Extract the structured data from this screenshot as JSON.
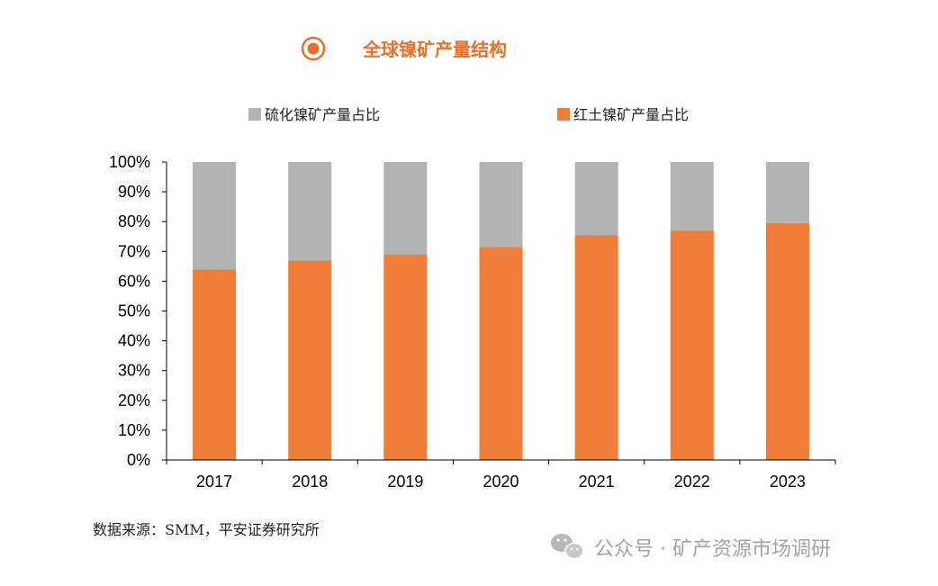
{
  "title": "全球镍矿产量结构",
  "source": "数据来源：SMM，平安证券研究所",
  "watermark": "公众号 · 矿产资源市场调研",
  "colors": {
    "accent": "#e8702a",
    "sulfide": "#b3b3b3",
    "laterite": "#ef7d37",
    "axis": "#000000",
    "watermark": "#9a9a9a"
  },
  "icons": {
    "title_marker": "target-circle-icon",
    "watermark_logo": "wechat-icon"
  },
  "chart_data": {
    "type": "bar",
    "stacked": true,
    "categories": [
      "2017",
      "2018",
      "2019",
      "2020",
      "2021",
      "2022",
      "2023"
    ],
    "series": [
      {
        "name": "红土镍矿产量占比",
        "color": "#ef7d37",
        "values": [
          0.64,
          0.67,
          0.69,
          0.715,
          0.755,
          0.77,
          0.795
        ]
      },
      {
        "name": "硫化镍矿产量占比",
        "color": "#b3b3b3",
        "values": [
          0.36,
          0.33,
          0.31,
          0.285,
          0.245,
          0.23,
          0.205
        ]
      }
    ],
    "ylim": [
      0,
      1
    ],
    "yticks": [
      0,
      0.1,
      0.2,
      0.3,
      0.4,
      0.5,
      0.6,
      0.7,
      0.8,
      0.9,
      1.0
    ],
    "ytick_labels": [
      "0%",
      "10%",
      "20%",
      "30%",
      "40%",
      "50%",
      "60%",
      "70%",
      "80%",
      "90%",
      "100%"
    ],
    "legend": {
      "placement": "top",
      "order": [
        "硫化镍矿产量占比",
        "红土镍矿产量占比"
      ]
    },
    "grid": false
  }
}
